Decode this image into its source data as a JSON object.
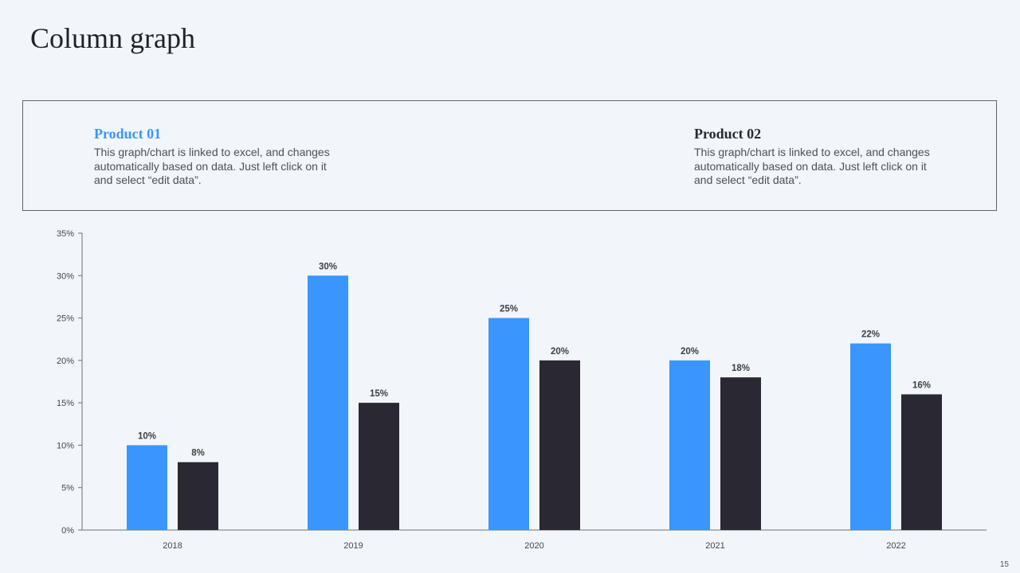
{
  "title": "Column graph",
  "legend": {
    "product1": {
      "name": "Product 01",
      "description": "This graph/chart is linked to excel, and changes automatically based on data. Just left click on it and select “edit data”.",
      "color": "#3a95fd"
    },
    "product2": {
      "name": "Product 02",
      "description": "This graph/chart is linked to excel, and changes automatically based on data. Just left click on it and select “edit data”.",
      "color": "#292833"
    }
  },
  "chart_data": {
    "type": "bar",
    "categories": [
      "2018",
      "2019",
      "2020",
      "2021",
      "2022"
    ],
    "series": [
      {
        "name": "Product 01",
        "values": [
          10,
          30,
          25,
          20,
          22
        ],
        "color": "#3a95fd"
      },
      {
        "name": "Product 02",
        "values": [
          8,
          15,
          20,
          18,
          16
        ],
        "color": "#292833"
      }
    ],
    "ylim": [
      0,
      35
    ],
    "yticks": [
      0,
      5,
      10,
      15,
      20,
      25,
      30,
      35
    ],
    "value_suffix": "%",
    "grid": false,
    "legend_placement": "top"
  },
  "page_number": "15"
}
